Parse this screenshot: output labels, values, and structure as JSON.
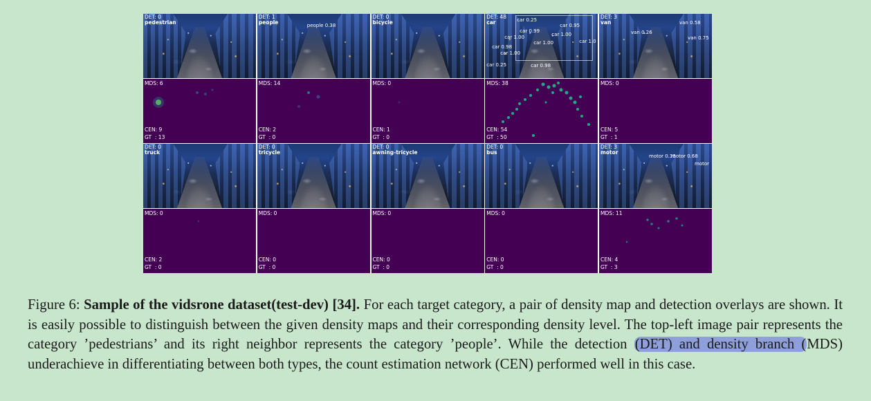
{
  "figure": {
    "categories": [
      {
        "name": "pedestrian",
        "det": "DET: 0",
        "mds": "MDS: 6",
        "cen": "CEN: 9",
        "gt": "GT  : 13",
        "dets": []
      },
      {
        "name": "people",
        "det": "DET: 1",
        "mds": "MDS: 14",
        "cen": "CEN: 2",
        "gt": "GT  : 0",
        "dets": [
          "people 0.38"
        ]
      },
      {
        "name": "bicycle",
        "det": "DET: 0",
        "mds": "MDS: 0",
        "cen": "CEN: 1",
        "gt": "GT  : 0",
        "dets": []
      },
      {
        "name": "car",
        "det": "DET: 48",
        "mds": "MDS: 38",
        "cen": "CEN: 54",
        "gt": "GT  : 50",
        "dets": [
          "car 0.25",
          "car 0.25",
          "car 1.00",
          "car 1.00",
          "car 1.00",
          "car 0.98",
          "car 1.00",
          "car 0.99",
          "car 0.95",
          "car 1.0",
          "car 0.98"
        ]
      },
      {
        "name": "van",
        "det": "DET: 3",
        "mds": "MDS: 0",
        "cen": "CEN: 5",
        "gt": "GT  : 1",
        "dets": [
          "van 0.58",
          "van 0.26",
          "van 0.75"
        ]
      },
      {
        "name": "truck",
        "det": "DET: 0",
        "mds": "MDS: 0",
        "cen": "CEN: 2",
        "gt": "GT  : 0",
        "dets": []
      },
      {
        "name": "tricycle",
        "det": "DET: 0",
        "mds": "MDS: 0",
        "cen": "CEN: 0",
        "gt": "GT  : 0",
        "dets": []
      },
      {
        "name": "awning-tricycle",
        "det": "DET: 0",
        "mds": "MDS: 0",
        "cen": "CEN: 0",
        "gt": "GT  : 0",
        "dets": []
      },
      {
        "name": "bus",
        "det": "DET: 0",
        "mds": "MDS: 0",
        "cen": "CEN: 0",
        "gt": "GT  : 0",
        "dets": []
      },
      {
        "name": "motor",
        "det": "DET: 3",
        "mds": "MDS: 11",
        "cen": "CEN: 4",
        "gt": "GT  : 3",
        "dets": [
          "motor 0.33",
          "motor 0.68",
          "motor"
        ]
      }
    ]
  },
  "caption": {
    "label": "Figure 6:",
    "title": "Sample of the vidsrone dataset(test-dev) [34].",
    "text_1": " For each target category, a pair of density map and detection overlays are shown. It is easily possible to distinguish between the given density maps and their corresponding density level. The top-left image pair represents the category ’pedestrians’ and its right neighbor represents the category ’people’. While the detection ",
    "highlight": "(DET) and density branch (",
    "text_2": "MDS) underachieve in differentiating between both types, the count estimation network (CEN) performed well in this case."
  },
  "colors": {
    "background": "#c8e6cc",
    "highlight": "#8f9fd9",
    "density_base": "#440154"
  }
}
